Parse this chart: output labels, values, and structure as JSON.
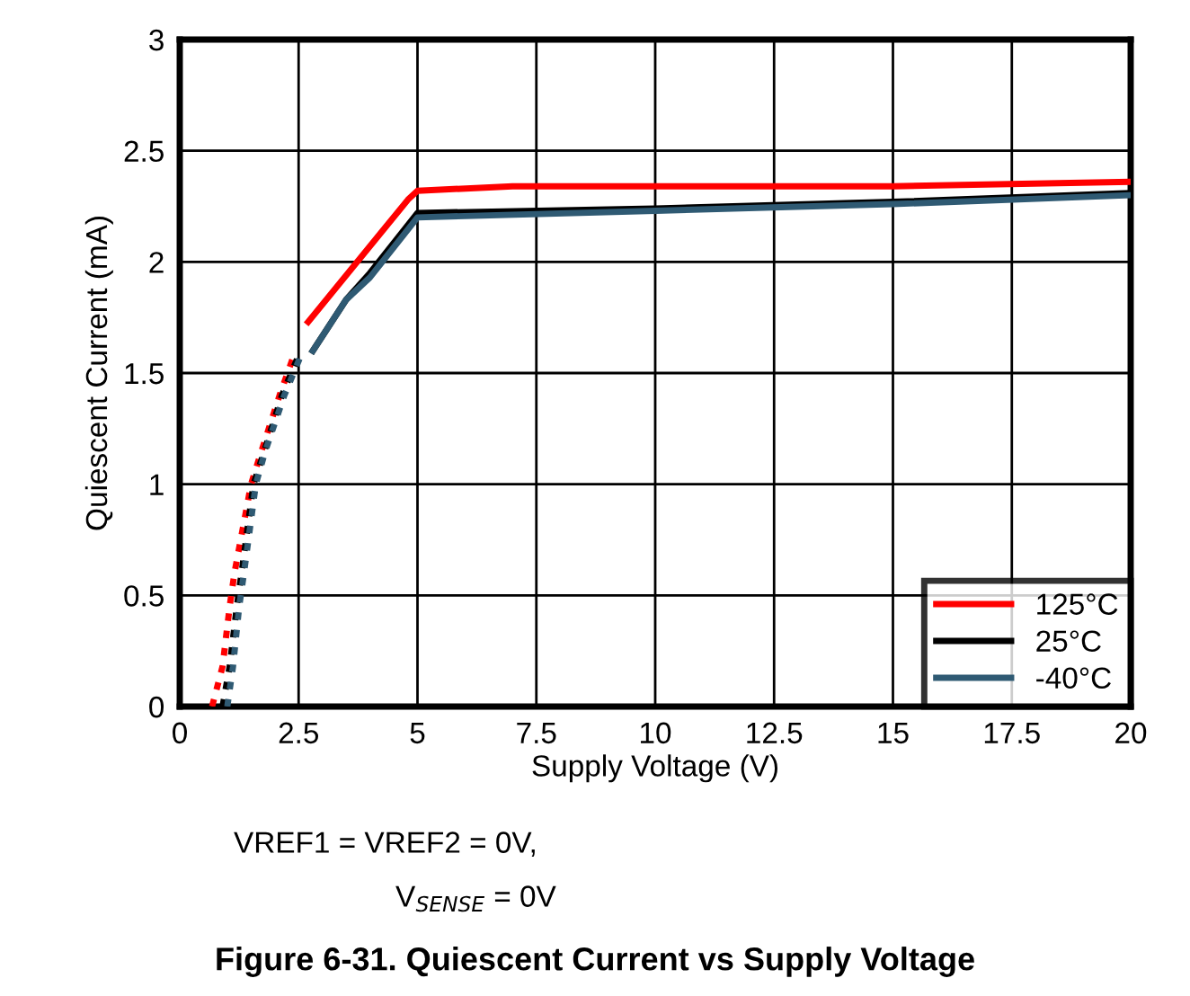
{
  "chart_data": {
    "type": "line",
    "title": "Figure 6-31. Quiescent Current vs Supply Voltage",
    "xlabel": "Supply Voltage (V)",
    "ylabel": "Quiescent Current (mA)",
    "annotations": [
      "VREF1 = VREF2 = 0V,",
      "V$_{SENSE}$ = 0V"
    ],
    "xlim": [
      0,
      20
    ],
    "ylim": [
      0,
      3
    ],
    "xticks": [
      0,
      2.5,
      5,
      7.5,
      10,
      12.5,
      15,
      17.5,
      20
    ],
    "yticks": [
      0,
      0.5,
      1,
      1.5,
      2,
      2.5,
      3
    ],
    "grid": true,
    "legend": "bottom right",
    "marker": "none",
    "series": [
      {
        "name": "125°C",
        "color": "#ff0000",
        "line_style": "solid",
        "x": [
          2.7,
          4.8,
          5,
          7,
          15,
          20
        ],
        "values": [
          1.73,
          2.28,
          2.32,
          2.34,
          2.34,
          2.36
        ]
      },
      {
        "name": "25°C",
        "color": "#000000",
        "line_style": "solid",
        "x": [
          2.8,
          3.5,
          4,
          5,
          10,
          15,
          20
        ],
        "values": [
          1.6,
          1.83,
          1.95,
          2.22,
          2.24,
          2.27,
          2.31
        ]
      },
      {
        "name": "-40°C",
        "color": "#2f5a73",
        "line_style": "solid",
        "x": [
          2.8,
          3.5,
          4,
          5,
          10,
          15,
          20
        ],
        "values": [
          1.6,
          1.83,
          1.93,
          2.2,
          2.23,
          2.26,
          2.3
        ]
      },
      {
        "color": "#ff0000",
        "line_style": "dotted",
        "x": [
          0.68,
          0.9,
          1.05,
          1.15,
          1.5,
          1.72,
          2.1,
          2.4
        ],
        "values": [
          0,
          0.18,
          0.45,
          0.6,
          1.0,
          1.15,
          1.4,
          1.58
        ]
      },
      {
        "color": "#000000",
        "line_style": "dotted",
        "x": [
          0.9,
          1.05,
          1.2,
          1.3,
          1.55,
          1.78,
          2.15,
          2.5
        ],
        "values": [
          0,
          0.18,
          0.45,
          0.6,
          1.0,
          1.15,
          1.4,
          1.58
        ]
      },
      {
        "color": "#2f5a73",
        "line_style": "dotted",
        "x": [
          1.0,
          1.12,
          1.25,
          1.35,
          1.6,
          1.8,
          2.2,
          2.55
        ],
        "values": [
          0,
          0.18,
          0.45,
          0.6,
          1.0,
          1.15,
          1.4,
          1.58
        ]
      }
    ]
  }
}
